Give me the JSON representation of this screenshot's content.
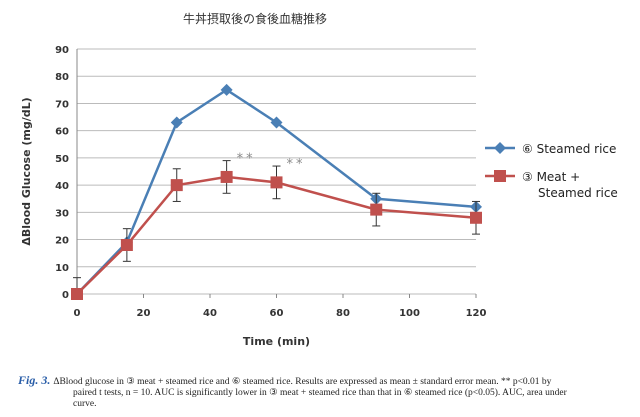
{
  "chart_data": {
    "type": "line",
    "title": "牛丼摂取後の食後血糖推移",
    "xlabel": "Time (min)",
    "ylabel": "ΔBlood Glucose (mg/dL)",
    "xlim": [
      0,
      120
    ],
    "ylim": [
      0,
      90
    ],
    "xticks": [
      0,
      20,
      40,
      60,
      80,
      100,
      120
    ],
    "yticks": [
      0,
      10,
      20,
      30,
      40,
      50,
      60,
      70,
      80,
      90
    ],
    "grid": "horizontal",
    "legend_position": "right",
    "x": [
      0,
      15,
      30,
      45,
      60,
      90,
      120
    ],
    "series": [
      {
        "name": "⑥ Steamed rice",
        "color": "#4a7fb5",
        "marker": "diamond",
        "values": [
          0,
          19,
          63,
          75,
          63,
          35,
          32
        ]
      },
      {
        "name_lines": [
          "③ Meat +",
          "Steamed rice"
        ],
        "name": "③ Meat + Steamed rice",
        "color": "#c0504d",
        "marker": "square",
        "values": [
          0,
          18,
          40,
          43,
          41,
          31,
          28
        ],
        "error": [
          6,
          6,
          6,
          6,
          6,
          6,
          6
        ]
      }
    ],
    "annotations": [
      {
        "x": 45,
        "text": "**"
      },
      {
        "x": 60,
        "text": "**"
      }
    ]
  },
  "caption": {
    "label": "Fig. 3.",
    "line1": "ΔBlood glucose in ③ meat + steamed rice and ⑥ steamed rice. Results are expressed as mean ± standard error mean. ** p<0.01 by",
    "line2": "paired t tests, n = 10. AUC is significantly lower in ③ meat + steamed rice than that in ⑥ steamed rice (p<0.05). AUC, area under",
    "line3": "curve."
  }
}
